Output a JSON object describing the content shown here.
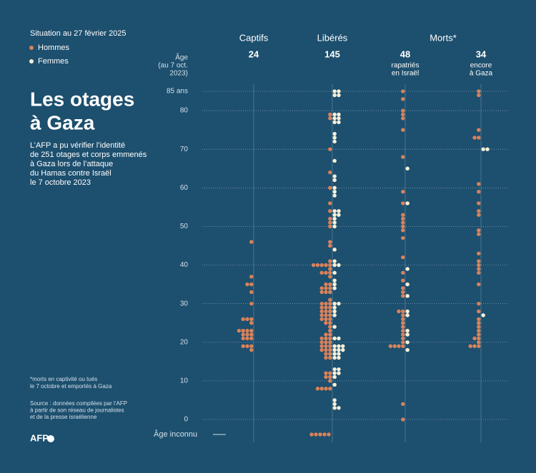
{
  "chart_data": {
    "type": "beeswarm",
    "date": "Situation au 27 février 2025",
    "title": [
      "Les otages",
      "à Gaza"
    ],
    "description": [
      "L’AFP a pu vérifier l’identité",
      "de 251 otages et corps emmenés",
      "à Gaza lors de l’attaque",
      "du Hamas contre Israël",
      "le 7 octobre 2023"
    ],
    "y_axis_label": [
      "Âge",
      "(au 7 oct.",
      "2023)"
    ],
    "unknown_label": "Âge inconnu",
    "footnote": [
      "*morts en captivité ou tués",
      "le 7 octobre et emportés à Gaza"
    ],
    "source": [
      "Source : données compilées par l’AFP",
      "à partir de son réseau de journalistes",
      "et de la presse israélienne"
    ],
    "logo": "AFP",
    "deaths_header": "Morts*",
    "ylim": [
      0,
      85
    ],
    "yticks": [
      0,
      10,
      20,
      30,
      40,
      50,
      60,
      70,
      80,
      {
        "value": 85,
        "label": "85 ans"
      }
    ],
    "grid": true,
    "series": [
      {
        "name": "Hommes",
        "color": "#d9825b"
      },
      {
        "name": "Femmes",
        "color": "#f6f0d8"
      }
    ],
    "groups": [
      {
        "name": "Captifs",
        "count": 24,
        "ages": [
          [
            46,
            37,
            35,
            35,
            33,
            30,
            26,
            26,
            26,
            25,
            23,
            23,
            23,
            23,
            22,
            22,
            22,
            21,
            21,
            21,
            19,
            19,
            19,
            18
          ],
          []
        ]
      },
      {
        "name": "Libérés",
        "count": 145,
        "ages": [
          [
            79,
            78,
            70,
            64,
            60,
            56,
            54,
            52,
            51,
            50,
            46,
            45,
            41,
            40,
            40,
            40,
            39,
            38,
            38,
            37,
            35,
            35,
            34,
            33,
            33,
            31,
            30,
            29,
            29,
            28,
            28,
            27,
            27,
            26,
            26,
            25,
            24,
            23,
            22,
            21,
            21,
            20,
            20,
            19,
            19,
            18,
            18,
            17,
            16,
            12,
            12,
            11,
            11,
            10,
            8,
            8,
            8,
            40,
            40,
            38,
            34,
            34,
            33,
            30,
            30,
            29,
            28,
            27,
            26,
            25,
            22,
            21,
            20,
            19,
            18,
            17,
            16,
            8,
            null,
            null,
            null,
            null,
            null
          ],
          [
            85,
            85,
            84,
            84,
            79,
            79,
            78,
            78,
            77,
            77,
            74,
            73,
            72,
            67,
            63,
            62,
            60,
            59,
            58,
            54,
            54,
            53,
            53,
            52,
            51,
            50,
            44,
            41,
            40,
            40,
            38,
            36,
            35,
            34,
            30,
            30,
            29,
            28,
            27,
            24,
            21,
            21,
            19,
            19,
            19,
            18,
            18,
            18,
            17,
            17,
            16,
            16,
            13,
            13,
            12,
            12,
            11,
            9,
            5,
            4,
            3,
            3
          ]
        ]
      },
      {
        "count": 48,
        "subtitle": [
          "rapatriés",
          "en Israël"
        ],
        "ages": [
          [
            85,
            83,
            80,
            79,
            78,
            75,
            68,
            59,
            56,
            53,
            52,
            51,
            50,
            49,
            47,
            42,
            38,
            36,
            34,
            33,
            32,
            28,
            28,
            27,
            26,
            25,
            24,
            23,
            22,
            21,
            20,
            19,
            19,
            19,
            19,
            4,
            0
          ],
          [
            65,
            56,
            39,
            35,
            32,
            28,
            27,
            23,
            22,
            20,
            18
          ]
        ]
      },
      {
        "count": 34,
        "subtitle": [
          "encore",
          "à Gaza"
        ],
        "ages": [
          [
            85,
            84,
            75,
            73,
            73,
            61,
            59,
            56,
            54,
            53,
            49,
            48,
            43,
            41,
            40,
            39,
            38,
            35,
            30,
            28,
            26,
            25,
            24,
            23,
            22,
            21,
            21,
            20,
            19,
            19,
            19
          ],
          [
            70,
            70,
            27
          ]
        ]
      }
    ]
  }
}
